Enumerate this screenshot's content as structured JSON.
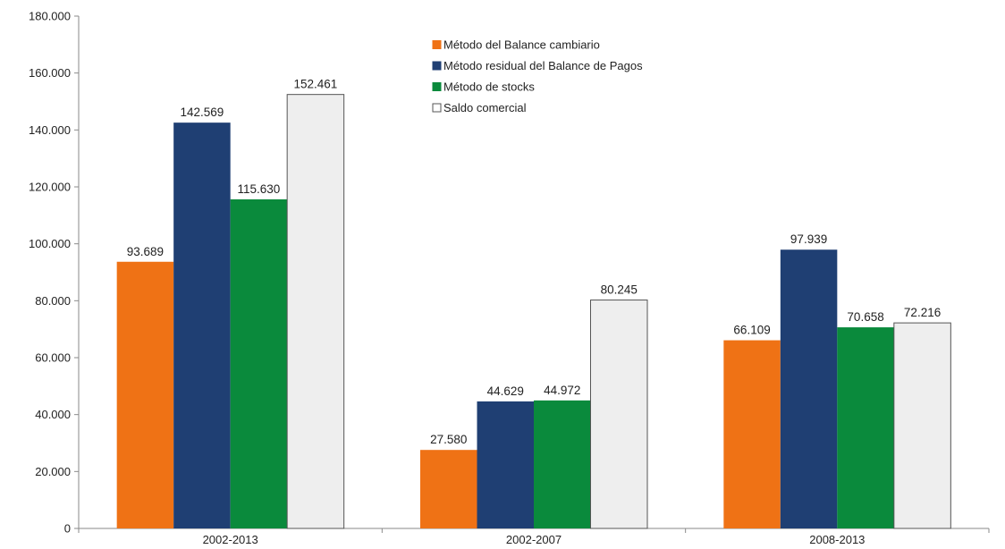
{
  "chart_data": {
    "type": "bar",
    "categories": [
      "2002-2013",
      "2002-2007",
      "2008-2013"
    ],
    "series": [
      {
        "name": "Método del Balance cambiario",
        "values": [
          93689,
          27580,
          66109
        ],
        "labels": [
          "93.689",
          "27.580",
          "66.109"
        ],
        "color": "#ef7215"
      },
      {
        "name": "Método residual del Balance de Pagos",
        "values": [
          142569,
          44629,
          97939
        ],
        "labels": [
          "142.569",
          "44.629",
          "97.939"
        ],
        "color": "#1f3f73"
      },
      {
        "name": "Método de stocks",
        "values": [
          115630,
          44972,
          70658
        ],
        "labels": [
          "115.630",
          "44.972",
          "70.658"
        ],
        "color": "#0a8a3c"
      },
      {
        "name": "Saldo comercial",
        "values": [
          152461,
          80245,
          72216
        ],
        "labels": [
          "152.461",
          "80.245",
          "72.216"
        ],
        "color": "#eeeeee"
      }
    ],
    "ylim": [
      0,
      180000
    ],
    "yticks": [
      0,
      20000,
      40000,
      60000,
      80000,
      100000,
      120000,
      140000,
      160000,
      180000
    ],
    "ytick_labels": [
      "0",
      "20.000",
      "40.000",
      "60.000",
      "80.000",
      "100.000",
      "120.000",
      "140.000",
      "160.000",
      "180.000"
    ],
    "legend_position": "top-center",
    "grid": false
  }
}
